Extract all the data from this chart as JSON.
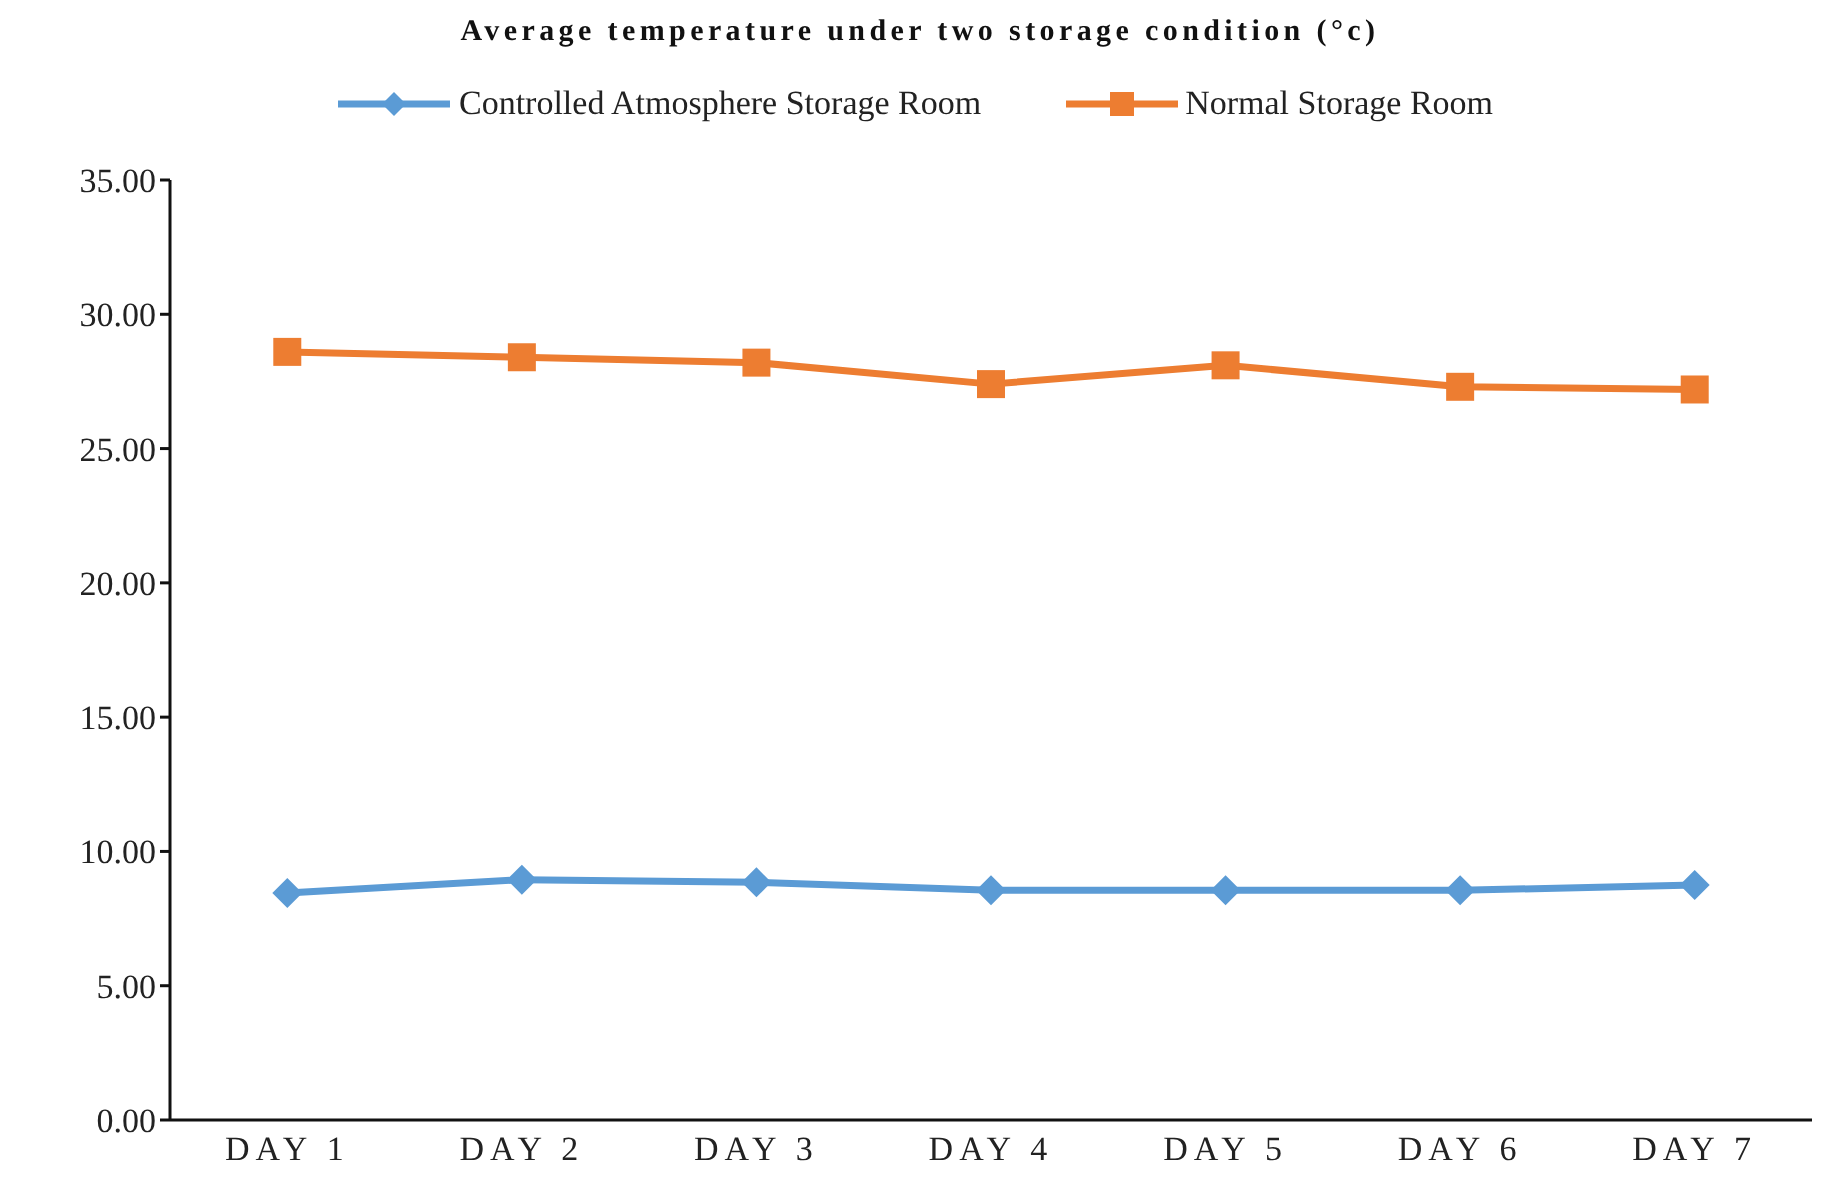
{
  "chart_data": {
    "type": "line",
    "title": "Average temperature under two storage condition (°c)",
    "categories": [
      "DAY 1",
      "DAY 2",
      "DAY 3",
      "DAY 4",
      "DAY 5",
      "DAY 6",
      "DAY 7"
    ],
    "series": [
      {
        "name": "Controlled Atmosphere Storage Room",
        "color": "#5b9bd5",
        "marker": "diamond",
        "values": [
          8.45,
          8.95,
          8.85,
          8.55,
          8.55,
          8.55,
          8.75
        ]
      },
      {
        "name": "Normal Storage Room",
        "color": "#ed7d31",
        "marker": "square",
        "values": [
          28.6,
          28.4,
          28.2,
          27.4,
          28.1,
          27.3,
          27.2
        ]
      }
    ],
    "ylim": [
      0,
      35
    ],
    "yticks": [
      {
        "value": 0,
        "label": "0.00"
      },
      {
        "value": 5,
        "label": "5.00"
      },
      {
        "value": 10,
        "label": "10.00"
      },
      {
        "value": 15,
        "label": "15.00"
      },
      {
        "value": 20,
        "label": "20.00"
      },
      {
        "value": 25,
        "label": "25.00"
      },
      {
        "value": 30,
        "label": "30.00"
      },
      {
        "value": 35,
        "label": "35.00"
      }
    ],
    "grid": false,
    "legend": "top",
    "line_style": "solid"
  }
}
